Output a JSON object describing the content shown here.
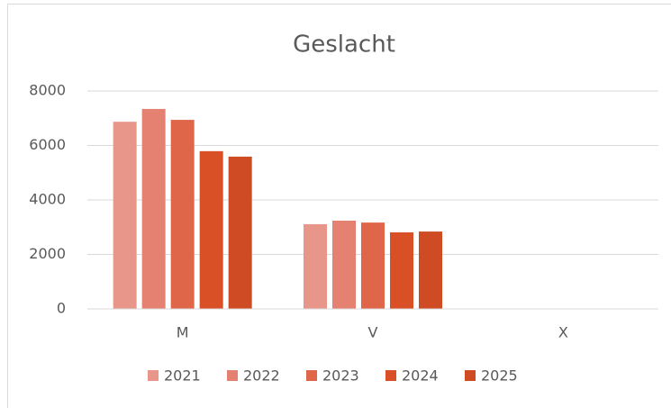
{
  "chart_data": {
    "type": "bar",
    "title": "Geslacht",
    "categories": [
      "M",
      "V",
      "X"
    ],
    "series": [
      {
        "name": "2021",
        "color": "#e8968a",
        "values": [
          6870,
          3110,
          0
        ]
      },
      {
        "name": "2022",
        "color": "#e58170",
        "values": [
          7340,
          3240,
          0
        ]
      },
      {
        "name": "2023",
        "color": "#e0664a",
        "values": [
          6940,
          3170,
          0
        ]
      },
      {
        "name": "2024",
        "color": "#d94f26",
        "values": [
          5790,
          2810,
          0
        ]
      },
      {
        "name": "2025",
        "color": "#cf4b24",
        "values": [
          5590,
          2840,
          0
        ]
      }
    ],
    "ylim": [
      0,
      8000
    ],
    "yticks": [
      0,
      2000,
      4000,
      6000,
      8000
    ],
    "grid": true,
    "legend": "bottom"
  }
}
